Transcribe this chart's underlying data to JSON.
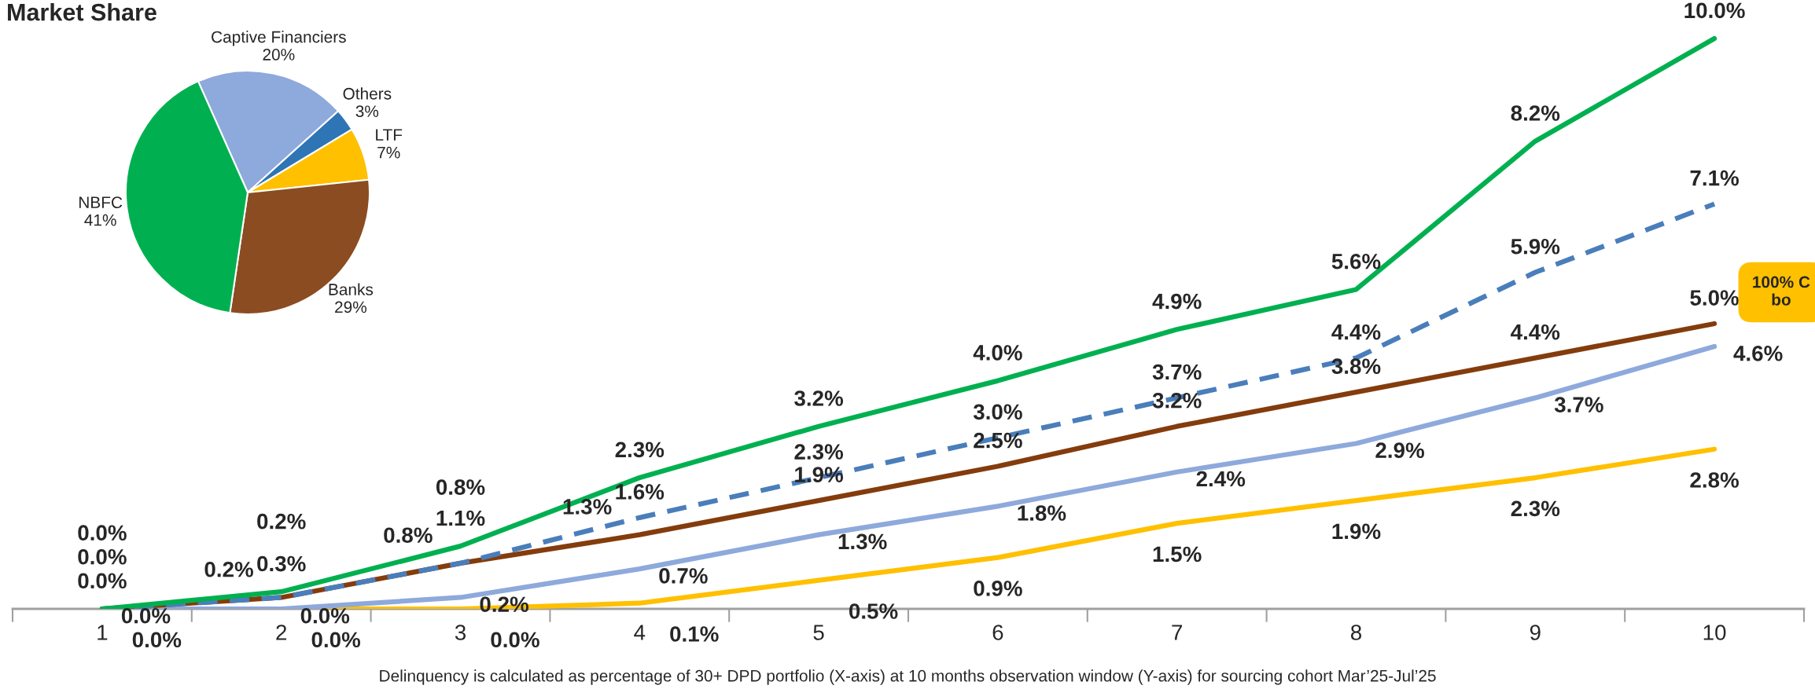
{
  "chart_data": [
    {
      "type": "pie",
      "title": "Market Share",
      "categories": [
        "Captive Financiers",
        "Others",
        "LTF",
        "Banks",
        "NBFC"
      ],
      "values": [
        20,
        3,
        7,
        29,
        41
      ],
      "value_labels": [
        "20%",
        "3%",
        "7%",
        "29%",
        "41%"
      ],
      "colors": [
        "#8EA9DB",
        "#2E75B6",
        "#FFC000",
        "#8B4C22",
        "#00B050"
      ]
    },
    {
      "type": "line",
      "categories": [
        "1",
        "2",
        "3",
        "4",
        "5",
        "6",
        "7",
        "8",
        "9",
        "10"
      ],
      "tick_labels": "x",
      "data_labels": true,
      "series": [
        {
          "color": "#00B050",
          "values": [
            0.0,
            0.3,
            1.1,
            2.3,
            3.2,
            4.0,
            4.9,
            5.6,
            8.2,
            10.0
          ],
          "value_labels": [
            "0.0%",
            "0.3%",
            "1.1%",
            "2.3%",
            "3.2%",
            "4.0%",
            "4.9%",
            "5.6%",
            "8.2%",
            "10.0%"
          ]
        },
        {
          "color": "#4A7EBB",
          "line_style": "dashed",
          "values": [
            0.0,
            0.2,
            0.8,
            1.6,
            2.3,
            3.0,
            3.7,
            4.4,
            5.9,
            7.1
          ],
          "value_labels": [
            "0.0%",
            "0.2%",
            "0.8%",
            "1.6%",
            "2.3%",
            "3.0%",
            "3.7%",
            "4.4%",
            "5.9%",
            "7.1%"
          ]
        },
        {
          "color": "#843C0C",
          "values": [
            0.0,
            0.2,
            0.8,
            1.3,
            1.9,
            2.5,
            3.2,
            3.8,
            4.4,
            5.0
          ],
          "value_labels": [
            "0.0%",
            "0.2%",
            "0.8%",
            "1.3%",
            "1.9%",
            "2.5%",
            "3.2%",
            "3.8%",
            "4.4%",
            "5.0%"
          ]
        },
        {
          "color": "#8EA9DB",
          "values": [
            0.0,
            0.0,
            0.2,
            0.7,
            1.3,
            1.8,
            2.4,
            2.9,
            3.7,
            4.6
          ],
          "value_labels": [
            "0.0%",
            "0.0%",
            "0.2%",
            "0.7%",
            "1.3%",
            "1.8%",
            "2.4%",
            "2.9%",
            "3.7%",
            "4.6%"
          ]
        },
        {
          "color": "#FFC000",
          "values": [
            0.0,
            0.0,
            0.0,
            0.1,
            0.5,
            0.9,
            1.5,
            1.9,
            2.3,
            2.8
          ],
          "value_labels": [
            "0.0%",
            "0.0%",
            "0.0%",
            "0.1%",
            "0.5%",
            "0.9%",
            "1.5%",
            "1.9%",
            "2.3%",
            "2.8%"
          ]
        }
      ],
      "annotations": [
        "Delinquency is calculated as percentage of 30+ DPD portfolio (X-axis) at 10 months observation window (Y-axis) for sourcing cohort Mar’25-Jul’25",
        "100% C\nbo"
      ]
    }
  ]
}
